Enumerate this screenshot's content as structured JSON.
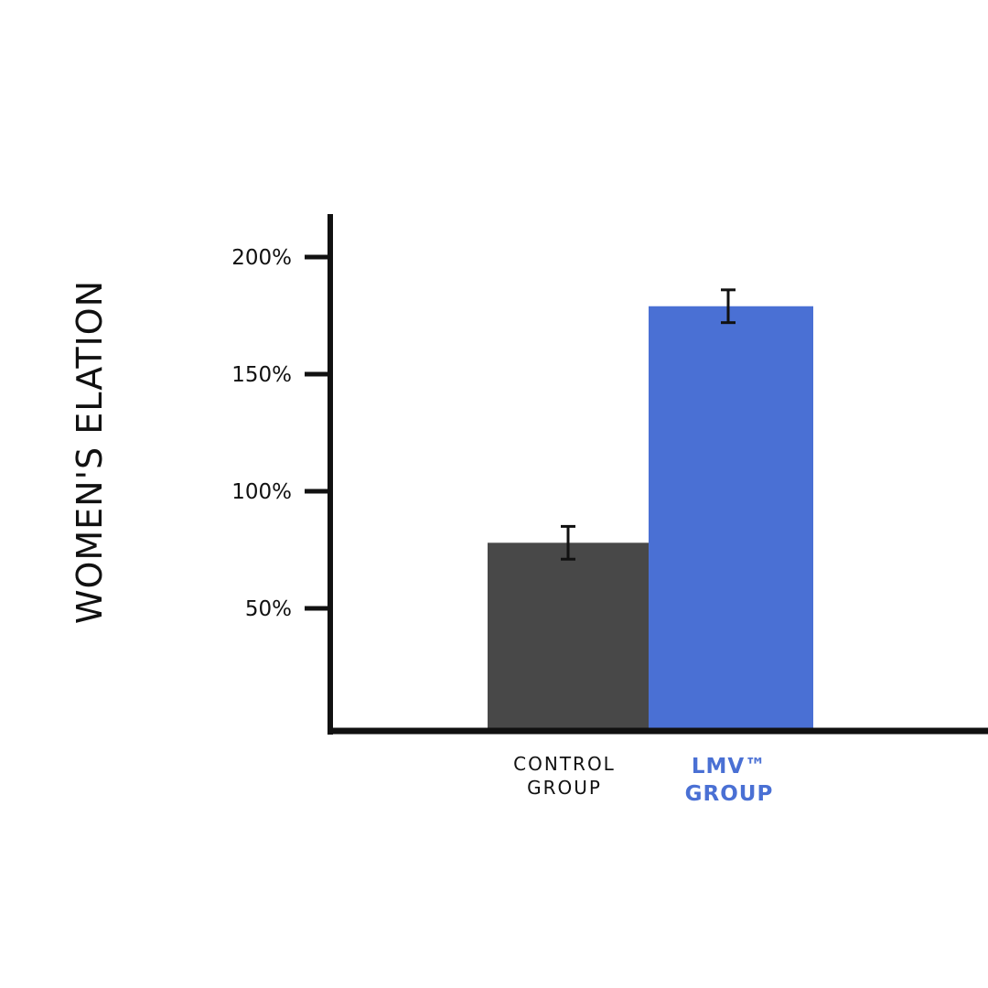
{
  "chart_data": {
    "type": "bar",
    "title": "",
    "xlabel": "",
    "ylabel": "WOMEN'S ELATION",
    "categories": [
      {
        "lines": [
          "CONTROL",
          "GROUP"
        ],
        "color": "#111111",
        "bold": false
      },
      {
        "lines": [
          "LMV™",
          "GROUP"
        ],
        "color": "#4a70d4",
        "bold": true
      }
    ],
    "values": [
      78,
      179
    ],
    "errors": [
      7,
      7
    ],
    "bar_colors": [
      "#484848",
      "#4a70d4"
    ],
    "unit": "%",
    "yticks": [
      50,
      100,
      150,
      200
    ],
    "ytick_labels": [
      "50%",
      "100%",
      "150%",
      "200%"
    ],
    "ylim": [
      0,
      218
    ],
    "grid": false
  }
}
